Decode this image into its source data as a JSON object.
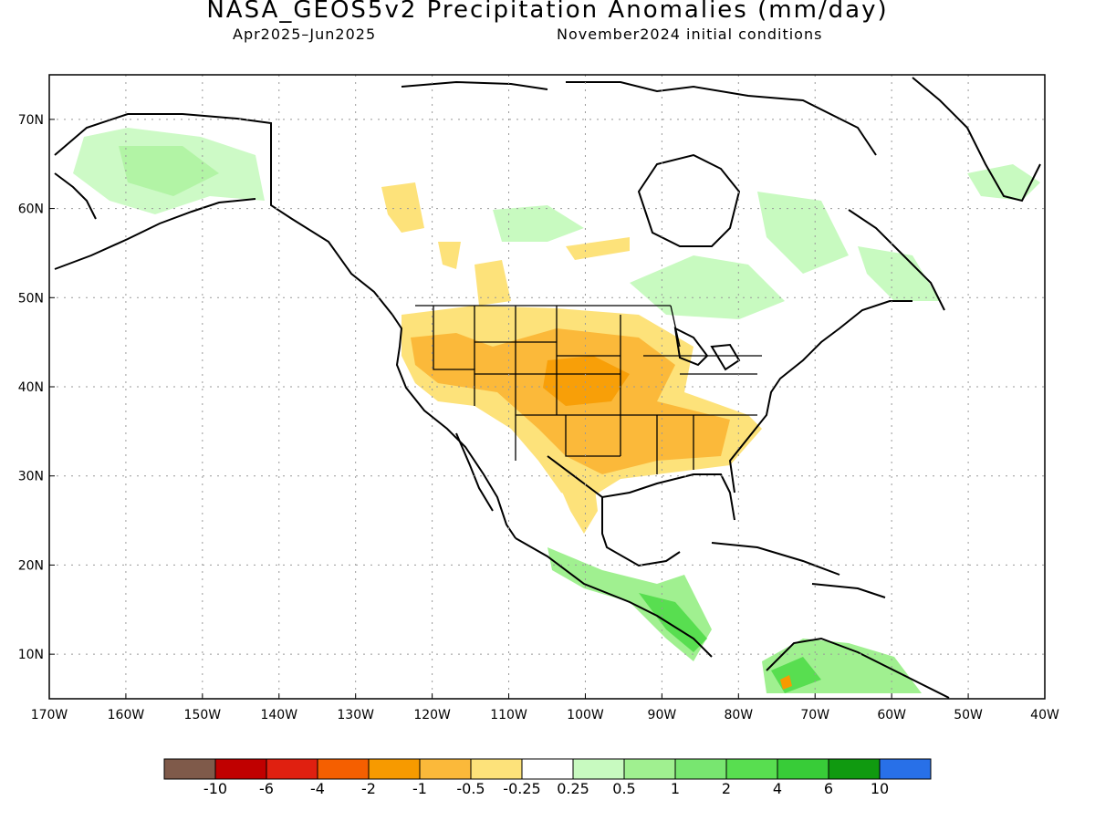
{
  "title": "NASA_GEOS5v2 Precipitation Anomalies (mm/day)",
  "subtitle_left": "Apr2025–Jun2025",
  "subtitle_right": "November2024 initial conditions",
  "map": {
    "lat_ticks": [
      "70N",
      "60N",
      "50N",
      "40N",
      "30N",
      "20N",
      "10N"
    ],
    "lon_ticks": [
      "170W",
      "160W",
      "150W",
      "140W",
      "130W",
      "120W",
      "110W",
      "100W",
      "90W",
      "80W",
      "70W",
      "60W",
      "50W",
      "40W"
    ],
    "extent": {
      "lon_min": -170,
      "lon_max": -40,
      "lat_min": 5,
      "lat_max": 75
    }
  },
  "colorbar": {
    "colors": [
      "#7f5a4a",
      "#c00000",
      "#e02010",
      "#f55f00",
      "#f79a00",
      "#fbb93a",
      "#fde27a",
      "#ffffff",
      "#c8fac0",
      "#a0f090",
      "#78e670",
      "#58de50",
      "#38cc38",
      "#109a10",
      "#2870e8"
    ],
    "labels": [
      "-10",
      "-6",
      "-4",
      "-2",
      "-1",
      "-0.5",
      "-0.25",
      "0.25",
      "0.5",
      "1",
      "2",
      "4",
      "6",
      "10"
    ]
  }
}
